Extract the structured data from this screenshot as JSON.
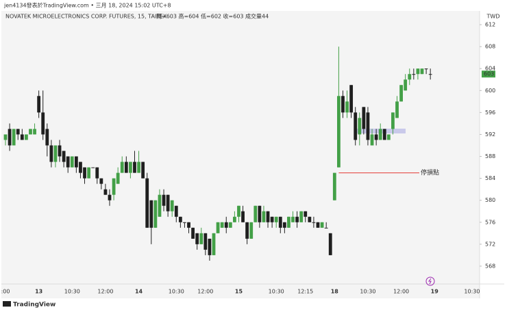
{
  "header": "jen4134發表於TradingView.com • 三月 18, 2024 15:02 UTC+8",
  "chart_data": {
    "type": "candlestick",
    "title": "NOVATEK MICROELECTRONICS CORP. FUTURES, 15, TAIFEX",
    "ohlc_text": "開=603 高=604 低=602 收=603 成交量44",
    "currency": "TWD",
    "up_color": "#43a047",
    "down_color": "#1f1f1f",
    "ylim": [
      564.75,
      614
    ],
    "yticks": [
      568,
      572,
      576,
      580,
      584,
      588,
      592,
      596,
      600,
      604,
      608,
      612
    ],
    "last_price": 603,
    "annotation": {
      "text": "停損點",
      "value": 585,
      "color": "#e53935"
    },
    "categories": [
      ":00",
      null,
      null,
      null,
      null,
      null,
      null,
      null,
      "13",
      null,
      null,
      null,
      null,
      null,
      null,
      null,
      "10:30",
      null,
      null,
      null,
      null,
      null,
      null,
      null,
      "12:00",
      null,
      null,
      null,
      null,
      null,
      null,
      null,
      "14",
      null,
      null,
      null,
      null,
      null,
      null,
      null,
      null,
      "10:30",
      null,
      null,
      null,
      null,
      null,
      null,
      "12:00",
      null,
      null,
      null,
      null,
      null,
      null,
      null,
      "15",
      null,
      null,
      null,
      null,
      null,
      null,
      null,
      null,
      "10:30",
      null,
      null,
      null,
      null,
      null,
      null,
      "12:15",
      null,
      null,
      null,
      null,
      null,
      null,
      "18",
      null,
      null,
      null,
      null,
      null,
      null,
      null,
      "10:30",
      null,
      null,
      null,
      null,
      null,
      null,
      null,
      "12:00",
      null,
      null,
      null,
      null,
      null,
      null,
      null,
      "19",
      null,
      null,
      null,
      null,
      null,
      null,
      null,
      null,
      "10:30",
      null,
      null
    ],
    "candles": [
      [
        591,
        592,
        590,
        592
      ],
      [
        593,
        594,
        589,
        590
      ],
      [
        590,
        593,
        590,
        593
      ],
      [
        593,
        593,
        591,
        592
      ],
      [
        592,
        593,
        591,
        591
      ],
      [
        591,
        592,
        591,
        592
      ],
      [
        592,
        593,
        592,
        593
      ],
      [
        592,
        594,
        592,
        593
      ],
      [
        599,
        600,
        595,
        596
      ],
      [
        596,
        600,
        591,
        592
      ],
      [
        593,
        594,
        588,
        590
      ],
      [
        590,
        591,
        586,
        587
      ],
      [
        587,
        590,
        586,
        590
      ],
      [
        590,
        591,
        587,
        588
      ],
      [
        589,
        589,
        586,
        587
      ],
      [
        588,
        588,
        585,
        586
      ],
      [
        586,
        588,
        586,
        588
      ],
      [
        588,
        588,
        585,
        586
      ],
      [
        587,
        587,
        584,
        585
      ],
      [
        586,
        586,
        583,
        584
      ],
      [
        584,
        586,
        584,
        586
      ],
      [
        586,
        586,
        586,
        586
      ],
      [
        586,
        586,
        583,
        584
      ],
      [
        584,
        584,
        582,
        583
      ],
      [
        582,
        583,
        581,
        581
      ],
      [
        581,
        582,
        579,
        580
      ],
      [
        581,
        584,
        580,
        584
      ],
      [
        583,
        586,
        583,
        585
      ],
      [
        585,
        588,
        585,
        587
      ],
      [
        587,
        588,
        585,
        585
      ],
      [
        585,
        587,
        584,
        587
      ],
      [
        587,
        589,
        585,
        585
      ],
      [
        585,
        589,
        585,
        587
      ],
      [
        587,
        587,
        584,
        584
      ],
      [
        584,
        585,
        575,
        575
      ],
      [
        580,
        580,
        572,
        575
      ],
      [
        575,
        580,
        575,
        580
      ],
      [
        577,
        582,
        577,
        581
      ],
      [
        581,
        582,
        578,
        579
      ],
      [
        581,
        581,
        577,
        578
      ],
      [
        578,
        580,
        577,
        580
      ],
      [
        579,
        579,
        576,
        577
      ],
      [
        577,
        577,
        575,
        576
      ],
      [
        576,
        576,
        575,
        576
      ],
      [
        576,
        576,
        574,
        575
      ],
      [
        575,
        575,
        573,
        573
      ],
      [
        574,
        574,
        571,
        572
      ],
      [
        572,
        575,
        572,
        574
      ],
      [
        574,
        574,
        570,
        571
      ],
      [
        573,
        573,
        569,
        570
      ],
      [
        570,
        574,
        570,
        574
      ],
      [
        574,
        576,
        574,
        576
      ],
      [
        575,
        576,
        575,
        576
      ],
      [
        576,
        577,
        574,
        575
      ],
      [
        575,
        576,
        575,
        576
      ],
      [
        576,
        578,
        576,
        577
      ],
      [
        577,
        579,
        576,
        579
      ],
      [
        578,
        579,
        576,
        576
      ],
      [
        576,
        576,
        572,
        573
      ],
      [
        573,
        576,
        573,
        576
      ],
      [
        576,
        579,
        576,
        579
      ],
      [
        579,
        579,
        575,
        576
      ],
      [
        576,
        579,
        576,
        578
      ],
      [
        578,
        578,
        575,
        576
      ],
      [
        577,
        577,
        575,
        576
      ],
      [
        576,
        577,
        575,
        577
      ],
      [
        577,
        577,
        574,
        575
      ],
      [
        576,
        576,
        574,
        575
      ],
      [
        575,
        577,
        575,
        577
      ],
      [
        576,
        578,
        576,
        577
      ],
      [
        577,
        578,
        575,
        576
      ],
      [
        576,
        578,
        576,
        578
      ],
      [
        578,
        578,
        576,
        577
      ],
      [
        577,
        577,
        576,
        576
      ],
      [
        576,
        577,
        575,
        576
      ],
      [
        576,
        576,
        575,
        575
      ],
      [
        575,
        576,
        575,
        576
      ],
      [
        575,
        576,
        575,
        575
      ],
      [
        574,
        574,
        570,
        570
      ],
      [
        580,
        585,
        580,
        585
      ],
      [
        586,
        608,
        586,
        599
      ],
      [
        599,
        600,
        595,
        596
      ],
      [
        596,
        600,
        595,
        598
      ],
      [
        601,
        601,
        595,
        596
      ],
      [
        596,
        597,
        590,
        591
      ],
      [
        592,
        596,
        590,
        595
      ],
      [
        597,
        597,
        592,
        593
      ],
      [
        596,
        597,
        590,
        591
      ],
      [
        590,
        593,
        590,
        592
      ],
      [
        592,
        593,
        590,
        591
      ],
      [
        591,
        594,
        591,
        593
      ],
      [
        593,
        593,
        591,
        591
      ],
      [
        591,
        592,
        591,
        592
      ],
      [
        593,
        596,
        592,
        596
      ],
      [
        595,
        599,
        595,
        598
      ],
      [
        598,
        601,
        598,
        601
      ],
      [
        600,
        603,
        600,
        602
      ],
      [
        602,
        604,
        601,
        603
      ],
      [
        603,
        604,
        602,
        603
      ],
      [
        603,
        604,
        602,
        604
      ],
      [
        603,
        604,
        603,
        604
      ],
      [
        604,
        604,
        603,
        604
      ],
      [
        603,
        604,
        602,
        603
      ],
      null,
      null,
      null,
      null,
      null,
      null,
      null,
      null,
      null,
      null,
      null,
      null
    ]
  },
  "footer": "TradingView"
}
